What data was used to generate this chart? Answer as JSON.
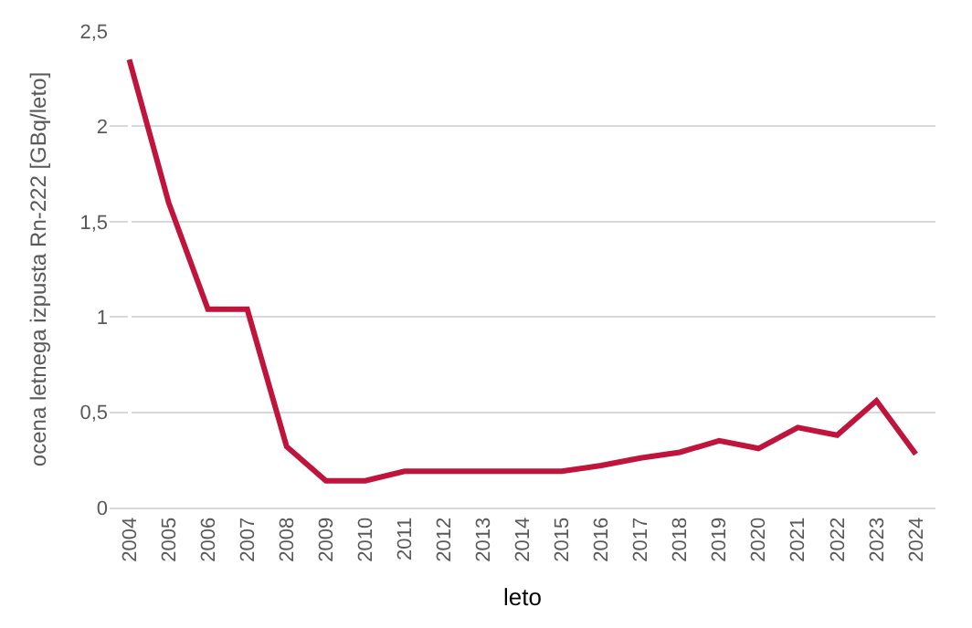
{
  "chart_data": {
    "type": "line",
    "xlabel": "leto",
    "ylabel": "ocena letnega izpusta Rn-222 [GBq/leto]",
    "categories": [
      "2004",
      "2005",
      "2006",
      "2007",
      "2008",
      "2009",
      "2010",
      "2011",
      "2012",
      "2013",
      "2014",
      "2015",
      "2016",
      "2017",
      "2018",
      "2019",
      "2020",
      "2021",
      "2022",
      "2023",
      "2024"
    ],
    "series": [
      {
        "color": "#c0143c",
        "values": [
          2.35,
          1.6,
          1.04,
          1.04,
          0.32,
          0.14,
          0.14,
          0.19,
          0.19,
          0.19,
          0.19,
          0.19,
          0.22,
          0.26,
          0.29,
          0.35,
          0.31,
          0.42,
          0.38,
          0.56,
          0.28
        ]
      }
    ],
    "ylim": [
      0,
      2.5
    ],
    "yticks": [
      0,
      {
        "value": 0.5,
        "label": "0,5"
      },
      1,
      {
        "value": 1.5,
        "label": "1,5"
      },
      2,
      {
        "value": 2.5,
        "label": "2,5"
      }
    ],
    "grid": "y",
    "legend": false,
    "marker": "none",
    "line_style": "solid"
  }
}
